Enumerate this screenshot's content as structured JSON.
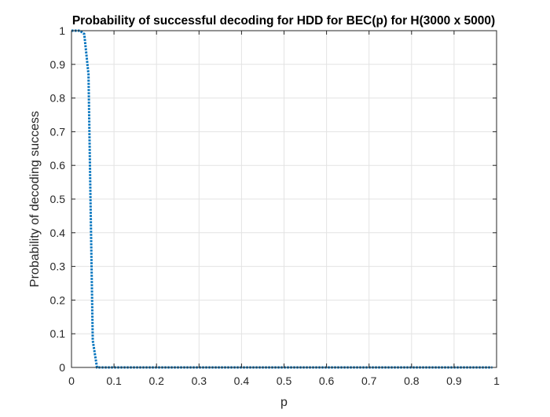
{
  "chart_data": {
    "type": "line",
    "title": "Probability of successful decoding for HDD for BEC(p) for H(3000 x 5000)",
    "xlabel": "p",
    "ylabel": "Probability of decoding success",
    "xlim": [
      0,
      1
    ],
    "ylim": [
      0,
      1
    ],
    "grid": true,
    "x_ticks": [
      "0",
      "0.1",
      "0.2",
      "0.3",
      "0.4",
      "0.5",
      "0.6",
      "0.7",
      "0.8",
      "0.9",
      "1"
    ],
    "y_ticks": [
      "0",
      "0.1",
      "0.2",
      "0.3",
      "0.4",
      "0.5",
      "0.6",
      "0.7",
      "0.8",
      "0.9",
      "1"
    ],
    "series": [
      {
        "color": "#0072bd",
        "line_style": "dotted",
        "x": [
          0,
          0.01,
          0.02,
          0.03,
          0.04,
          0.05,
          0.06,
          0.07,
          0.08,
          0.09,
          0.1,
          0.15,
          0.2,
          0.25,
          0.3,
          0.35,
          0.4,
          0.45,
          0.5,
          0.55,
          0.6,
          0.65,
          0.7,
          0.75,
          0.8,
          0.85,
          0.9,
          0.95,
          0.99
        ],
        "y": [
          1,
          1,
          1,
          0.99,
          0.87,
          0.08,
          0,
          0,
          0,
          0,
          0,
          0,
          0,
          0,
          0,
          0,
          0,
          0,
          0,
          0,
          0,
          0,
          0,
          0,
          0,
          0,
          0,
          0,
          0
        ]
      }
    ]
  }
}
